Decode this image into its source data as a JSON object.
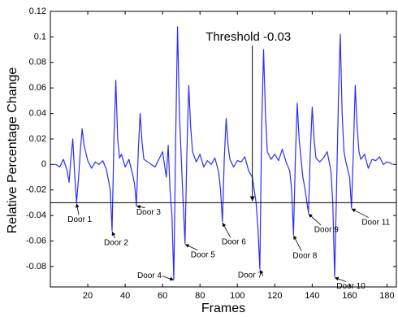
{
  "chart_data": {
    "type": "line",
    "x_label": "Frames",
    "y_label": "Relative Percentage Change",
    "xlim": [
      0,
      185
    ],
    "ylim": [
      -0.096,
      0.12
    ],
    "xticks": [
      20,
      40,
      60,
      80,
      100,
      120,
      140,
      160,
      180
    ],
    "yticks": [
      0.12,
      0.1,
      0.08,
      0.06,
      0.04,
      0.02,
      0,
      -0.02,
      -0.04,
      -0.06,
      -0.08
    ],
    "threshold": -0.03,
    "series": [
      {
        "name": "signal",
        "color": "#2b2bff",
        "x": [
          1,
          3,
          5,
          7,
          9,
          10,
          11,
          12,
          13,
          14,
          15,
          16,
          17,
          18,
          20,
          22,
          24,
          26,
          28,
          30,
          31,
          32,
          33,
          34,
          35,
          36,
          37,
          38,
          40,
          42,
          44,
          45,
          46,
          47,
          48,
          49,
          50,
          52,
          54,
          56,
          58,
          60,
          62,
          63,
          64,
          65,
          66,
          67,
          68,
          69,
          70,
          71,
          72,
          73,
          74,
          75,
          76,
          78,
          80,
          82,
          84,
          86,
          88,
          90,
          91,
          92,
          93,
          94,
          95,
          96,
          98,
          100,
          102,
          104,
          106,
          108,
          109,
          110,
          111,
          112,
          113,
          114,
          115,
          116,
          118,
          120,
          122,
          124,
          126,
          128,
          129,
          130,
          131,
          132,
          133,
          134,
          135,
          136,
          137,
          138,
          139,
          140,
          141,
          142,
          144,
          146,
          148,
          150,
          151,
          152,
          153,
          154,
          155,
          156,
          157,
          158,
          160,
          161,
          162,
          163,
          164,
          165,
          166,
          168,
          170,
          172,
          174,
          176,
          178,
          180,
          182,
          183
        ],
        "values": [
          0,
          0,
          -0.002,
          0.004,
          -0.005,
          -0.014,
          0.005,
          0.02,
          -0.008,
          -0.03,
          -0.012,
          0.01,
          0.028,
          0.015,
          0.003,
          -0.003,
          0.002,
          0,
          0.003,
          -0.004,
          -0.012,
          -0.02,
          -0.052,
          0.02,
          0.066,
          0.02,
          0.005,
          0.008,
          -0.002,
          0.004,
          -0.008,
          -0.015,
          -0.032,
          0.01,
          0.04,
          0.018,
          0.004,
          0.002,
          0,
          -0.002,
          0.004,
          0.01,
          -0.01,
          0.015,
          -0.02,
          -0.04,
          -0.09,
          0.02,
          0.108,
          0.04,
          0.005,
          -0.03,
          -0.062,
          0.01,
          0.062,
          0.03,
          0.01,
          0.002,
          0.008,
          -0.002,
          0.003,
          0,
          0.005,
          -0.006,
          -0.02,
          -0.045,
          0.005,
          0.036,
          0.015,
          0.004,
          -0.002,
          0.003,
          0.002,
          0.006,
          -0.005,
          -0.01,
          -0.02,
          -0.03,
          -0.05,
          -0.082,
          0.03,
          0.09,
          0.04,
          0.01,
          0.004,
          0.008,
          0.003,
          0.012,
          0.002,
          -0.005,
          -0.02,
          -0.055,
          0.005,
          0.048,
          0.02,
          0.005,
          -0.01,
          -0.018,
          -0.028,
          -0.038,
          0.01,
          0.045,
          0.02,
          0.005,
          0.002,
          0.005,
          0.01,
          -0.005,
          -0.03,
          -0.088,
          -0.02,
          0.05,
          0.102,
          0.04,
          0.01,
          0.002,
          -0.01,
          -0.034,
          0.01,
          0.062,
          0.03,
          0.01,
          0.004,
          0.008,
          -0.003,
          0.004,
          0.003,
          0.006,
          0,
          0.002,
          0.001,
          0
        ]
      }
    ],
    "threshold_label": {
      "text": "Threshold -0.03",
      "x": 108,
      "y": -0.03
    },
    "annotations": [
      {
        "text": "Door 1",
        "x": 14,
        "y": -0.03
      },
      {
        "text": "Door 2",
        "x": 33,
        "y": -0.052
      },
      {
        "text": "Door 3",
        "x": 46,
        "y": -0.032
      },
      {
        "text": "Door 4",
        "x": 66,
        "y": -0.09
      },
      {
        "text": "Door 5",
        "x": 72,
        "y": -0.062
      },
      {
        "text": "Door 6",
        "x": 92,
        "y": -0.045
      },
      {
        "text": "Door 7",
        "x": 112,
        "y": -0.082
      },
      {
        "text": "Door 8",
        "x": 130,
        "y": -0.055
      },
      {
        "text": "Door 9",
        "x": 138,
        "y": -0.038
      },
      {
        "text": "Door 10",
        "x": 152,
        "y": -0.088
      },
      {
        "text": "Door 11",
        "x": 161,
        "y": -0.034
      }
    ]
  }
}
